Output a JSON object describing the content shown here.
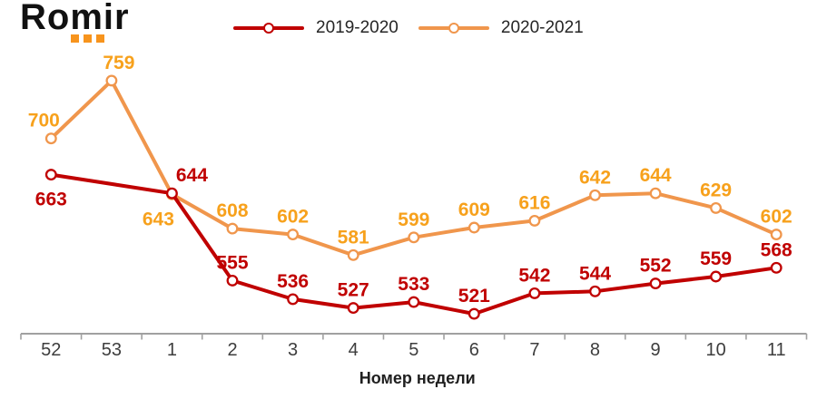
{
  "logo": {
    "text": "Romir"
  },
  "colors": {
    "background": "#FFFFFF",
    "red": "#C00000",
    "orange_line": "#F0964C",
    "orange_label": "#F7A11C",
    "axis": "#A0A0A0",
    "tick_label": "#3D3D3D",
    "axis_title": "#1F1F1F",
    "legend_text": "#262626",
    "logo_text": "#111111",
    "logo_dots": "#F7941D"
  },
  "chart_data": {
    "type": "line",
    "title": "",
    "xlabel": "Номер недели",
    "ylabel": "",
    "categories": [
      "52",
      "53",
      "1",
      "2",
      "3",
      "4",
      "5",
      "6",
      "7",
      "8",
      "9",
      "10",
      "11"
    ],
    "ylim": [
      510,
      770
    ],
    "grid": false,
    "legend_position": "top",
    "marker": "open-circle",
    "series": [
      {
        "name": "2019-2020",
        "color": "#C00000",
        "label_color": "#C00000",
        "values": [
          663,
          null,
          644,
          555,
          536,
          527,
          533,
          521,
          542,
          544,
          552,
          559,
          568
        ],
        "label_side": [
          "below",
          null,
          "above",
          "above",
          "above",
          "above",
          "above",
          "above",
          "above",
          "above",
          "above",
          "above",
          "above"
        ],
        "label_dx": [
          0,
          0,
          22,
          0,
          0,
          0,
          0,
          0,
          0,
          0,
          0,
          0,
          0
        ]
      },
      {
        "name": "2020-2021",
        "color": "#F0964C",
        "label_color": "#F7A11C",
        "values": [
          700,
          759,
          643,
          608,
          602,
          581,
          599,
          609,
          616,
          642,
          644,
          629,
          602
        ],
        "label_side": [
          "above",
          "above",
          "below",
          "above",
          "above",
          "above",
          "above",
          "above",
          "above",
          "above",
          "above",
          "above",
          "above"
        ],
        "label_dx": [
          -8,
          8,
          -15,
          0,
          0,
          0,
          0,
          0,
          0,
          0,
          0,
          0,
          0
        ]
      }
    ]
  }
}
